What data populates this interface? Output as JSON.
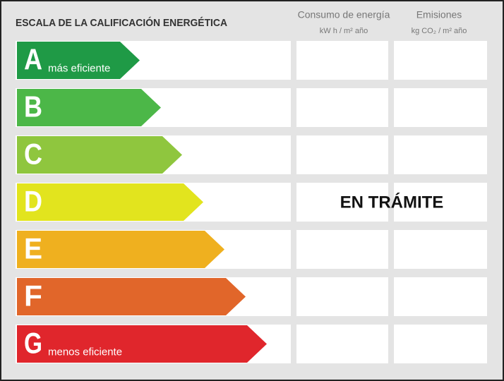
{
  "header": {
    "title": "ESCALA DE LA CALIFICACIÓN ENERGÉTICA",
    "columns": [
      {
        "title": "Consumo de energía",
        "unit": "kW h / m² año"
      },
      {
        "title": "Emisiones",
        "unit": "kg CO₂ / m² año"
      }
    ]
  },
  "rows": [
    {
      "letter": "A",
      "note": "más eficiente"
    },
    {
      "letter": "B"
    },
    {
      "letter": "C"
    },
    {
      "letter": "D"
    },
    {
      "letter": "E"
    },
    {
      "letter": "F"
    },
    {
      "letter": "G",
      "note": "menos eficiente"
    }
  ],
  "status": "EN TRÁMITE"
}
